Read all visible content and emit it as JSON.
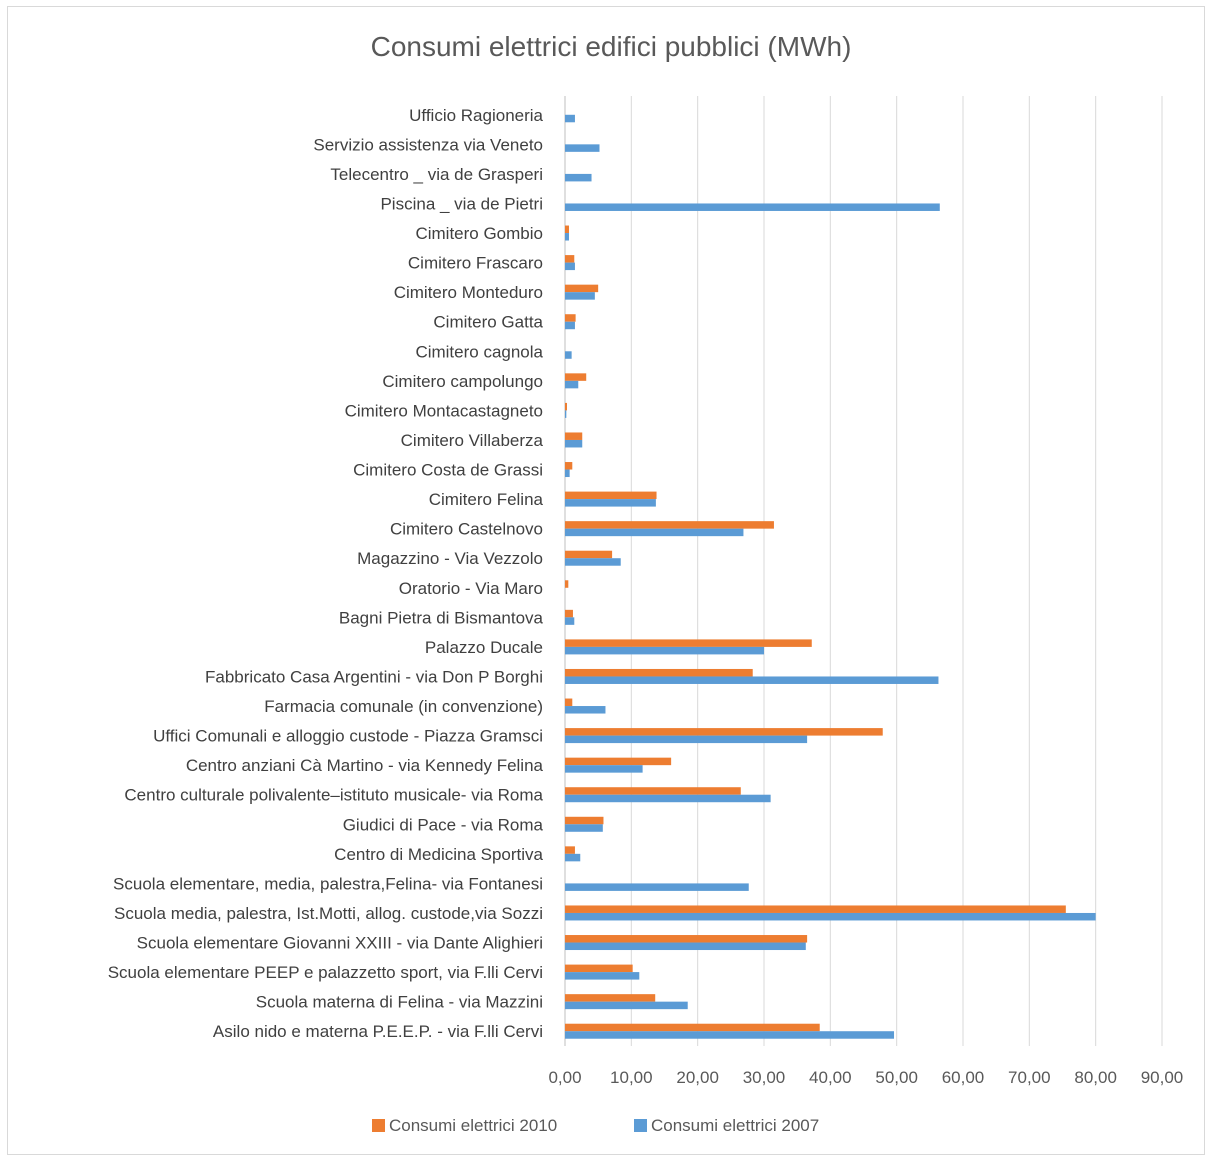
{
  "chart_data": {
    "type": "bar",
    "orientation": "horizontal",
    "title": "Consumi elettrici edifici pubblici (MWh)",
    "xlabel": "",
    "ylabel": "",
    "xlim": [
      0,
      90
    ],
    "x_ticks": [
      "0,00",
      "10,00",
      "20,00",
      "30,00",
      "40,00",
      "50,00",
      "60,00",
      "70,00",
      "80,00",
      "90,00"
    ],
    "grid": true,
    "legend_position": "bottom",
    "categories": [
      "Ufficio Ragioneria",
      "Servizio assistenza via Veneto",
      "Telecentro _ via de Grasperi",
      "Piscina _ via de Pietri",
      "Cimitero Gombio",
      "Cimitero Frascaro",
      "Cimitero Monteduro",
      "Cimitero Gatta",
      "Cimitero cagnola",
      "Cimitero campolungo",
      "Cimitero Montacastagneto",
      "Cimitero Villaberza",
      "Cimitero Costa de Grassi",
      "Cimitero Felina",
      "Cimitero Castelnovo",
      "Magazzino - Via Vezzolo",
      "Oratorio - Via Maro",
      "Bagni Pietra di Bismantova",
      "Palazzo Ducale ",
      "Fabbricato Casa Argentini - via Don P Borghi",
      "Farmacia comunale (in convenzione)",
      "Uffici Comunali e alloggio custode - Piazza Gramsci",
      "Centro anziani  Cà Martino - via Kennedy Felina",
      "Centro culturale polivalente–istituto musicale- via Roma ",
      "Giudici di Pace - via Roma",
      "Centro di Medicina Sportiva",
      "Scuola elementare, media, palestra,Felina- via Fontanesi",
      "Scuola media, palestra, Ist.Motti, allog. custode,via Sozzi",
      "Scuola elementare  Giovanni XXIII - via Dante Alighieri",
      "Scuola elementare PEEP e palazzetto sport, via F.lli Cervi",
      "Scuola materna di  Felina - via Mazzini",
      "Asilo nido e materna P.E.E.P. - via F.lli Cervi"
    ],
    "series": [
      {
        "name": "Consumi elettrici 2010",
        "color": "#ed7d31",
        "values": [
          0,
          0,
          0,
          0,
          0.6,
          1.4,
          5.0,
          1.6,
          0,
          3.2,
          0.3,
          2.6,
          1.1,
          13.8,
          31.5,
          7.1,
          0.5,
          1.2,
          37.2,
          28.3,
          1.1,
          47.9,
          16.0,
          26.5,
          5.8,
          1.5,
          0,
          75.5,
          36.5,
          10.2,
          13.6,
          38.4
        ]
      },
      {
        "name": "Consumi elettrici 2007",
        "color": "#5b9bd5",
        "values": [
          1.5,
          5.2,
          4.0,
          56.5,
          0.6,
          1.5,
          4.5,
          1.5,
          1.0,
          2.0,
          0.2,
          2.6,
          0.7,
          13.7,
          26.9,
          8.4,
          0,
          1.4,
          30.0,
          56.3,
          6.1,
          36.5,
          11.7,
          31.0,
          5.7,
          2.3,
          27.7,
          80.0,
          36.3,
          11.2,
          18.5,
          49.6
        ]
      }
    ]
  }
}
